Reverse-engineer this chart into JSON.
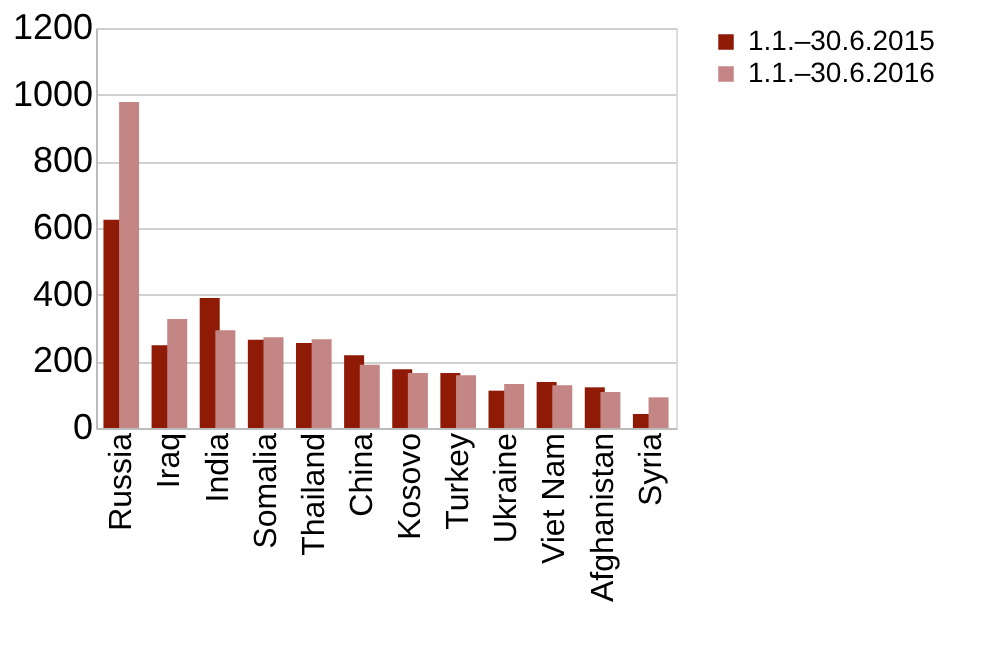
{
  "chart_data": {
    "type": "bar",
    "categories": [
      "Russia",
      "Iraq",
      "India",
      "Somalia",
      "Thailand",
      "China",
      "Kosovo",
      "Turkey",
      "Ukraine",
      "Viet Nam",
      "Afghanistan",
      "Syria"
    ],
    "series": [
      {
        "name": "1.1.–30.6.2015",
        "color": "#8f1a05",
        "values": [
          625,
          248,
          390,
          265,
          255,
          218,
          176,
          165,
          112,
          138,
          122,
          42
        ]
      },
      {
        "name": "1.1.–30.6.2016",
        "color": "#c48585",
        "values": [
          978,
          327,
          293,
          272,
          266,
          190,
          165,
          158,
          132,
          128,
          108,
          92
        ]
      }
    ],
    "ylim": [
      0,
      1200
    ],
    "yticks": [
      0,
      200,
      400,
      600,
      800,
      1000,
      1200
    ],
    "grid": "y",
    "legend": "right"
  }
}
